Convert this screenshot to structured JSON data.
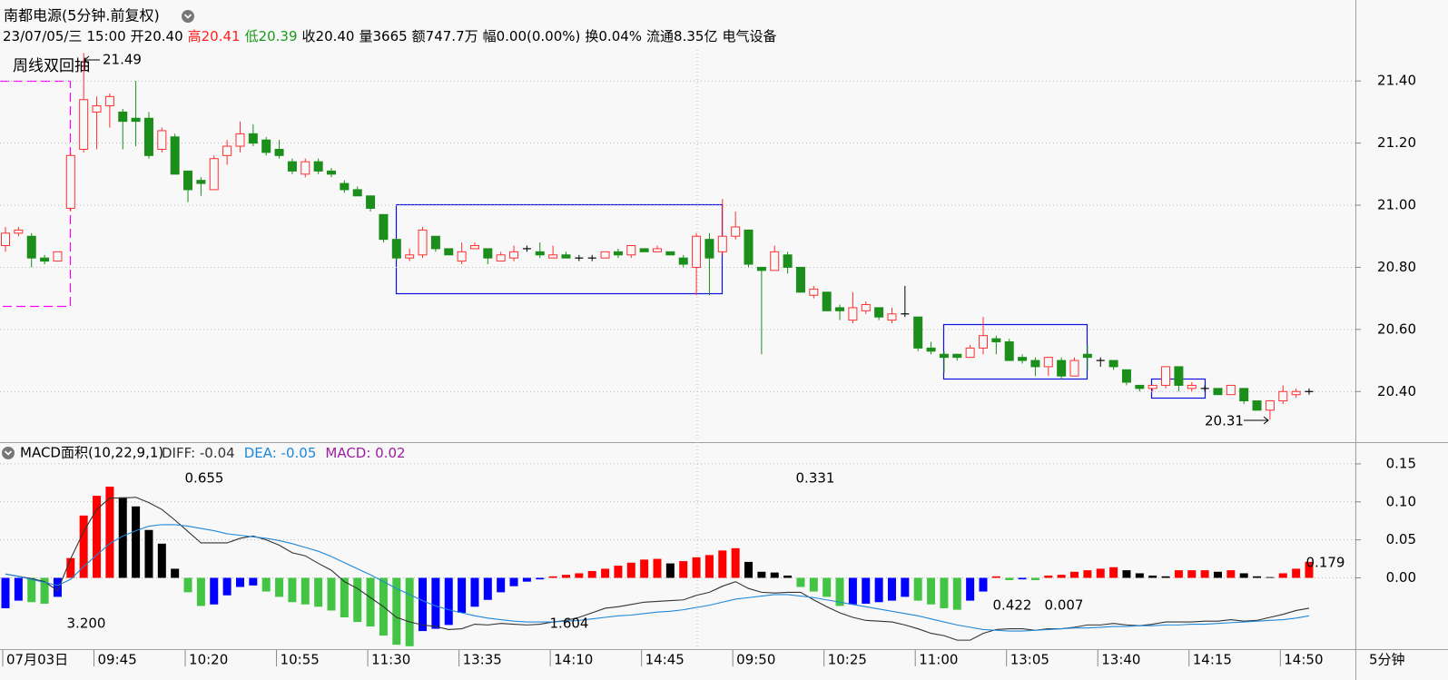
{
  "period": "5分钟",
  "chart_data": [
    {
      "type": "candlestick",
      "title": "南都电源(5分钟.前复权)",
      "subtitle": [
        {
          "text": "23/07/05/三",
          "color": "#000000"
        },
        {
          "text": "15:00",
          "color": "#000000"
        },
        {
          "text": "开20.40",
          "color": "#000000"
        },
        {
          "text": "高20.41",
          "color": "#ff2020"
        },
        {
          "text": "低20.39",
          "color": "#1a9a1a"
        },
        {
          "text": "收20.40",
          "color": "#000000"
        },
        {
          "text": "量3665",
          "color": "#000000"
        },
        {
          "text": "额747.7万",
          "color": "#000000"
        },
        {
          "text": "幅0.00(0.00%)",
          "color": "#000000"
        },
        {
          "text": "换0.04%",
          "color": "#000000"
        },
        {
          "text": "流通8.35亿",
          "color": "#000000"
        },
        {
          "text": "电气设备",
          "color": "#000000"
        }
      ],
      "annotations": [
        {
          "text": "21.49",
          "color": "#000000"
        },
        {
          "text": "20.31",
          "color": "#000000"
        },
        {
          "text": "周线双回抽",
          "color": "#ff00ff"
        }
      ],
      "categories": [
        "07月03日",
        null,
        null,
        null,
        null,
        null,
        null,
        "09:45",
        null,
        null,
        null,
        null,
        null,
        null,
        "10:20",
        null,
        null,
        null,
        null,
        null,
        null,
        "10:55",
        null,
        null,
        null,
        null,
        null,
        null,
        "11:30",
        null,
        null,
        null,
        null,
        null,
        null,
        "13:35",
        null,
        null,
        null,
        null,
        null,
        null,
        "14:10",
        null,
        null,
        null,
        null,
        null,
        null,
        "14:45",
        null,
        null,
        null,
        null,
        null,
        null,
        "09:50",
        null,
        null,
        null,
        null,
        null,
        null,
        "10:25",
        null,
        null,
        null,
        null,
        null,
        null,
        "11:00",
        null,
        null,
        null,
        null,
        null,
        null,
        "13:05",
        null,
        null,
        null,
        null,
        null,
        null,
        "13:40",
        null,
        null,
        null,
        null,
        null,
        null,
        "14:15",
        null,
        null,
        null,
        null,
        null,
        null,
        "14:50",
        null,
        null
      ],
      "open": [
        20.87,
        20.91,
        20.9,
        20.83,
        20.82,
        20.99,
        21.18,
        21.3,
        21.32,
        21.3,
        21.28,
        21.28,
        21.18,
        21.22,
        21.11,
        21.08,
        21.05,
        21.16,
        21.19,
        21.23,
        21.21,
        21.18,
        21.14,
        21.1,
        21.14,
        21.11,
        21.07,
        21.05,
        21.03,
        20.97,
        20.89,
        20.83,
        20.84,
        20.9,
        20.86,
        20.82,
        20.86,
        20.86,
        20.82,
        20.83,
        20.86,
        20.85,
        20.83,
        20.84,
        20.83,
        20.83,
        20.83,
        20.85,
        20.84,
        20.86,
        20.85,
        20.85,
        20.83,
        20.8,
        20.89,
        20.85,
        20.9,
        20.92,
        20.8,
        20.79,
        20.84,
        20.8,
        20.71,
        20.72,
        20.67,
        20.63,
        20.66,
        20.67,
        20.63,
        20.65,
        20.64,
        20.54,
        20.52,
        20.52,
        20.51,
        20.54,
        20.57,
        20.56,
        20.51,
        20.5,
        20.48,
        20.5,
        20.45,
        20.52,
        20.5,
        20.5,
        20.47,
        20.42,
        20.41,
        20.42,
        20.48,
        20.41,
        20.41,
        20.41,
        20.39,
        20.41,
        20.37,
        20.34,
        20.37,
        20.39,
        20.4
      ],
      "high": [
        20.93,
        20.93,
        20.91,
        20.84,
        20.85,
        21.17,
        21.49,
        21.35,
        21.36,
        21.31,
        21.4,
        21.3,
        21.25,
        21.23,
        21.11,
        21.09,
        21.16,
        21.21,
        21.27,
        21.26,
        21.22,
        21.21,
        21.15,
        21.15,
        21.15,
        21.12,
        21.08,
        21.06,
        21.03,
        20.97,
        20.89,
        20.86,
        20.93,
        20.9,
        20.86,
        20.88,
        20.88,
        20.86,
        20.85,
        20.87,
        20.87,
        20.88,
        20.87,
        20.85,
        20.84,
        20.84,
        20.85,
        20.86,
        20.87,
        20.86,
        20.87,
        20.85,
        20.84,
        20.91,
        20.91,
        21.02,
        20.98,
        20.92,
        20.8,
        20.87,
        20.85,
        20.8,
        20.74,
        20.72,
        20.68,
        20.72,
        20.69,
        20.67,
        20.67,
        20.74,
        20.64,
        20.56,
        20.53,
        20.52,
        20.55,
        20.64,
        20.58,
        20.57,
        20.52,
        20.51,
        20.51,
        20.51,
        20.51,
        20.55,
        20.51,
        20.5,
        20.47,
        20.42,
        20.42,
        20.48,
        20.48,
        20.43,
        20.42,
        20.41,
        20.42,
        20.41,
        20.37,
        20.37,
        20.42,
        20.41,
        20.41
      ],
      "low": [
        20.85,
        20.9,
        20.8,
        20.81,
        20.82,
        20.98,
        21.17,
        21.18,
        21.25,
        21.18,
        21.19,
        21.15,
        21.17,
        21.1,
        21.01,
        21.03,
        21.05,
        21.13,
        21.17,
        21.19,
        21.16,
        21.15,
        21.1,
        21.09,
        21.1,
        21.09,
        21.04,
        21.03,
        20.98,
        20.88,
        20.82,
        20.82,
        20.83,
        20.85,
        20.84,
        20.81,
        20.86,
        20.81,
        20.82,
        20.82,
        20.85,
        20.83,
        20.83,
        20.83,
        20.82,
        20.82,
        20.83,
        20.83,
        20.83,
        20.85,
        20.85,
        20.84,
        20.8,
        20.71,
        20.71,
        20.84,
        20.89,
        20.8,
        20.52,
        20.79,
        20.78,
        20.72,
        20.7,
        20.66,
        20.63,
        20.62,
        20.65,
        20.63,
        20.62,
        20.64,
        20.53,
        20.52,
        20.46,
        20.5,
        20.51,
        20.52,
        20.52,
        20.5,
        20.49,
        20.45,
        20.45,
        20.44,
        20.45,
        20.47,
        20.48,
        20.47,
        20.42,
        20.4,
        20.4,
        20.41,
        20.4,
        20.4,
        20.4,
        20.39,
        20.39,
        20.36,
        20.34,
        20.31,
        20.36,
        20.38,
        20.39
      ],
      "close": [
        20.91,
        20.92,
        20.83,
        20.82,
        20.85,
        21.16,
        21.34,
        21.32,
        21.35,
        21.27,
        21.27,
        21.16,
        21.24,
        21.1,
        21.05,
        21.07,
        21.15,
        21.19,
        21.23,
        21.2,
        21.17,
        21.16,
        21.11,
        21.14,
        21.11,
        21.1,
        21.05,
        21.03,
        20.99,
        20.89,
        20.83,
        20.84,
        20.92,
        20.86,
        20.84,
        20.85,
        20.87,
        20.83,
        20.84,
        20.85,
        20.86,
        20.84,
        20.84,
        20.83,
        20.83,
        20.83,
        20.85,
        20.84,
        20.87,
        20.85,
        20.86,
        20.84,
        20.81,
        20.9,
        20.83,
        20.9,
        20.93,
        20.81,
        20.79,
        20.85,
        20.8,
        20.72,
        20.73,
        20.66,
        20.66,
        20.67,
        20.68,
        20.64,
        20.65,
        20.65,
        20.54,
        20.53,
        20.51,
        20.51,
        20.54,
        20.58,
        20.56,
        20.5,
        20.5,
        20.48,
        20.51,
        20.45,
        20.5,
        20.51,
        20.5,
        20.48,
        20.43,
        20.41,
        20.42,
        20.48,
        20.42,
        20.42,
        20.41,
        20.39,
        20.42,
        20.37,
        20.34,
        20.37,
        20.4,
        20.4,
        20.4
      ],
      "up_color": "#ff3030",
      "down_color": "#1b8e1b",
      "flat_color": "#000000",
      "ylim": [
        20.24,
        21.5
      ],
      "yticks": [
        {
          "value": 20.4,
          "label": "20.40"
        },
        {
          "value": 20.6,
          "label": "20.60"
        },
        {
          "value": 20.8,
          "label": "20.80"
        },
        {
          "value": 21.0,
          "label": "21.00"
        },
        {
          "value": 21.2,
          "label": "21.20"
        },
        {
          "value": 21.4,
          "label": "21.40"
        }
      ],
      "grid": true
    },
    {
      "type": "macd",
      "title": "MACD面积(10,22,9,1)",
      "series": [
        {
          "name": "DIFF: -0.04",
          "color": "#333333",
          "values": [
            0.005,
            0.002,
            -0.001,
            -0.005,
            -0.017,
            0.025,
            0.061,
            0.09,
            0.105,
            0.105,
            0.106,
            0.099,
            0.09,
            0.076,
            0.061,
            0.046,
            0.046,
            0.046,
            0.052,
            0.055,
            0.05,
            0.043,
            0.033,
            0.029,
            0.019,
            0.01,
            -0.005,
            -0.014,
            -0.026,
            -0.038,
            -0.052,
            -0.058,
            -0.062,
            -0.064,
            -0.068,
            -0.067,
            -0.061,
            -0.062,
            -0.06,
            -0.061,
            -0.062,
            -0.061,
            -0.058,
            -0.056,
            -0.052,
            -0.046,
            -0.04,
            -0.038,
            -0.035,
            -0.032,
            -0.031,
            -0.03,
            -0.029,
            -0.023,
            -0.019,
            -0.011,
            -0.005,
            -0.014,
            -0.019,
            -0.02,
            -0.019,
            -0.019,
            -0.029,
            -0.038,
            -0.046,
            -0.052,
            -0.056,
            -0.057,
            -0.058,
            -0.062,
            -0.067,
            -0.073,
            -0.076,
            -0.082,
            -0.082,
            -0.073,
            -0.068,
            -0.067,
            -0.067,
            -0.069,
            -0.067,
            -0.067,
            -0.065,
            -0.062,
            -0.062,
            -0.06,
            -0.062,
            -0.063,
            -0.061,
            -0.058,
            -0.058,
            -0.058,
            -0.057,
            -0.057,
            -0.055,
            -0.057,
            -0.056,
            -0.052,
            -0.048,
            -0.043,
            -0.04
          ]
        },
        {
          "name": "DEA: -0.05",
          "color": "#1e88d8",
          "values": [
            0.005,
            0.002,
            -0.002,
            -0.006,
            -0.01,
            -0.002,
            0.015,
            0.03,
            0.045,
            0.055,
            0.062,
            0.068,
            0.07,
            0.07,
            0.068,
            0.065,
            0.062,
            0.058,
            0.056,
            0.054,
            0.052,
            0.049,
            0.045,
            0.04,
            0.035,
            0.028,
            0.02,
            0.012,
            0.004,
            -0.005,
            -0.014,
            -0.022,
            -0.03,
            -0.037,
            -0.042,
            -0.046,
            -0.05,
            -0.053,
            -0.055,
            -0.057,
            -0.058,
            -0.058,
            -0.058,
            -0.057,
            -0.056,
            -0.054,
            -0.052,
            -0.05,
            -0.049,
            -0.047,
            -0.045,
            -0.044,
            -0.042,
            -0.039,
            -0.036,
            -0.032,
            -0.028,
            -0.026,
            -0.024,
            -0.022,
            -0.022,
            -0.024,
            -0.026,
            -0.029,
            -0.032,
            -0.035,
            -0.038,
            -0.041,
            -0.044,
            -0.047,
            -0.05,
            -0.054,
            -0.058,
            -0.062,
            -0.065,
            -0.068,
            -0.069,
            -0.07,
            -0.07,
            -0.069,
            -0.068,
            -0.067,
            -0.066,
            -0.066,
            -0.065,
            -0.064,
            -0.064,
            -0.063,
            -0.063,
            -0.062,
            -0.062,
            -0.061,
            -0.061,
            -0.06,
            -0.059,
            -0.058,
            -0.057,
            -0.056,
            -0.055,
            -0.053,
            -0.05
          ]
        },
        {
          "name": "MACD: 0.02",
          "color": "#9b1fa0",
          "bar_colors": {
            "rise_pos": "#ff0000",
            "fall_pos": "#000000",
            "fall_neg": "#44c444",
            "rise_neg": "#0000ff"
          },
          "values": [
            -0.04,
            -0.03,
            -0.032,
            -0.034,
            -0.025,
            0.026,
            0.082,
            0.108,
            0.12,
            0.106,
            0.094,
            0.063,
            0.045,
            0.012,
            -0.019,
            -0.037,
            -0.035,
            -0.023,
            -0.012,
            -0.01,
            -0.018,
            -0.025,
            -0.032,
            -0.035,
            -0.038,
            -0.043,
            -0.052,
            -0.058,
            -0.064,
            -0.076,
            -0.088,
            -0.09,
            -0.07,
            -0.067,
            -0.062,
            -0.046,
            -0.038,
            -0.029,
            -0.019,
            -0.011,
            -0.005,
            -0.002,
            0.002,
            0.004,
            0.006,
            0.009,
            0.012,
            0.016,
            0.02,
            0.024,
            0.025,
            0.019,
            0.022,
            0.027,
            0.03,
            0.036,
            0.039,
            0.021,
            0.008,
            0.007,
            0.003,
            -0.012,
            -0.018,
            -0.025,
            -0.037,
            -0.035,
            -0.034,
            -0.032,
            -0.03,
            -0.025,
            -0.03,
            -0.035,
            -0.04,
            -0.042,
            -0.03,
            -0.018,
            0.002,
            -0.003,
            -0.002,
            -0.003,
            0.003,
            0.004,
            0.008,
            0.01,
            0.012,
            0.014,
            0.01,
            0.006,
            0.003,
            0.002,
            0.01,
            0.01,
            0.01,
            0.008,
            0.01,
            0.006,
            0.002,
            0.001,
            0.006,
            0.012,
            0.021
          ]
        }
      ],
      "annotations": [
        {
          "text": "0.655",
          "color": "#ff0000"
        },
        {
          "text": "0.331",
          "color": "#ff0000"
        },
        {
          "text": "3.200",
          "color": "#33aa33"
        },
        {
          "text": "1.604",
          "color": "#33aa33"
        },
        {
          "text": "0.422",
          "color": "#33aa33"
        },
        {
          "text": "0.007",
          "color": "#33aa33"
        },
        {
          "text": "0.179",
          "color": "#ff0000"
        }
      ],
      "ylim": [
        -0.095,
        0.175
      ],
      "yticks": [
        {
          "value": 0,
          "label": "0.00"
        },
        {
          "value": 0.05,
          "label": "0.05"
        },
        {
          "value": 0.1,
          "label": "0.10"
        },
        {
          "value": 0.15,
          "label": "0.15"
        }
      ],
      "grid": true
    }
  ]
}
